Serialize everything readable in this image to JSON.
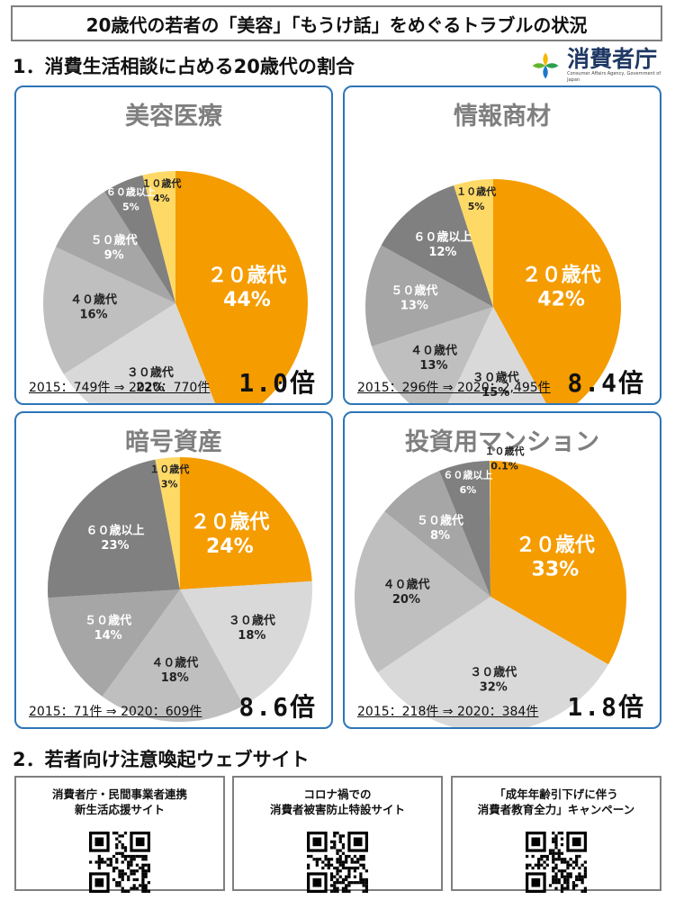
{
  "title": "20歳代の若者の「美容」「もうけ話」をめぐるトラブルの状況",
  "section1": "1．消費生活相談に占める20歳代の割合",
  "section2": "2．若者向け注意喚起ウェブサイト",
  "logo": {
    "name": "消費者庁",
    "subtitle": "Consumer Affairs Agency, Government of Japan"
  },
  "colors": {
    "twenties": "#f59c00",
    "teens": "#ffd966",
    "panel_border": "#2e75b6"
  },
  "chart_data": [
    {
      "type": "pie",
      "title": "美容医療",
      "slices": [
        {
          "label": "２０歳代",
          "value": 44,
          "pct": "44%",
          "color": "#f59c00"
        },
        {
          "label": "３０歳代",
          "value": 22,
          "pct": "22%",
          "color": "#d9d9d9"
        },
        {
          "label": "４０歳代",
          "value": 16,
          "pct": "16%",
          "color": "#bfbfbf"
        },
        {
          "label": "５０歳代",
          "value": 9,
          "pct": "9%",
          "color": "#a6a6a6"
        },
        {
          "label": "６０歳以上",
          "value": 5,
          "pct": "5%",
          "color": "#808080"
        },
        {
          "label": "１０歳代",
          "value": 4,
          "pct": "4%",
          "color": "#ffd966"
        }
      ],
      "stats": "2015：749件 ⇒ 2020：770件",
      "multiplier": "1.0倍"
    },
    {
      "type": "pie",
      "title": "情報商材",
      "slices": [
        {
          "label": "２０歳代",
          "value": 42,
          "pct": "42%",
          "color": "#f59c00"
        },
        {
          "label": "３０歳代",
          "value": 15,
          "pct": "15%",
          "color": "#d9d9d9"
        },
        {
          "label": "４０歳代",
          "value": 13,
          "pct": "13%",
          "color": "#bfbfbf"
        },
        {
          "label": "５０歳代",
          "value": 13,
          "pct": "13%",
          "color": "#a6a6a6"
        },
        {
          "label": "６０歳以上",
          "value": 12,
          "pct": "12%",
          "color": "#808080"
        },
        {
          "label": "１０歳代",
          "value": 5,
          "pct": "5%",
          "color": "#ffd966"
        }
      ],
      "stats": "2015：296件 ⇒ 2020：2,495件",
      "multiplier": "8.4倍"
    },
    {
      "type": "pie",
      "title": "暗号資産",
      "slices": [
        {
          "label": "２０歳代",
          "value": 24,
          "pct": "24%",
          "color": "#f59c00"
        },
        {
          "label": "３０歳代",
          "value": 18,
          "pct": "18%",
          "color": "#d9d9d9"
        },
        {
          "label": "４０歳代",
          "value": 18,
          "pct": "18%",
          "color": "#bfbfbf"
        },
        {
          "label": "５０歳代",
          "value": 14,
          "pct": "14%",
          "color": "#a6a6a6"
        },
        {
          "label": "６０歳以上",
          "value": 23,
          "pct": "23%",
          "color": "#808080"
        },
        {
          "label": "１０歳代",
          "value": 3,
          "pct": "3%",
          "color": "#ffd966"
        }
      ],
      "stats": "2015：71件 ⇒ 2020：609件",
      "multiplier": "8.6倍"
    },
    {
      "type": "pie",
      "title": "投資用マンション",
      "slices": [
        {
          "label": "２０歳代",
          "value": 33,
          "pct": "33%",
          "color": "#f59c00"
        },
        {
          "label": "３０歳代",
          "value": 32,
          "pct": "32%",
          "color": "#d9d9d9"
        },
        {
          "label": "４０歳代",
          "value": 20,
          "pct": "20%",
          "color": "#bfbfbf"
        },
        {
          "label": "５０歳代",
          "value": 8,
          "pct": "8%",
          "color": "#a6a6a6"
        },
        {
          "label": "６０歳以上",
          "value": 6,
          "pct": "6%",
          "color": "#808080"
        },
        {
          "label": "１０歳代",
          "value": 0.1,
          "pct": "0.1%",
          "color": "#ffd966"
        }
      ],
      "stats": "2015：218件 ⇒ 2020：384件",
      "multiplier": "1.8倍"
    }
  ],
  "sites": [
    {
      "label": "消費者庁・民間事業者連携\n新生活応援サイト"
    },
    {
      "label": "コロナ禍での\n消費者被害防止特設サイト"
    },
    {
      "label": "「成年年齢引下げに伴う\n消費者教育全力」キャンペーン"
    }
  ]
}
